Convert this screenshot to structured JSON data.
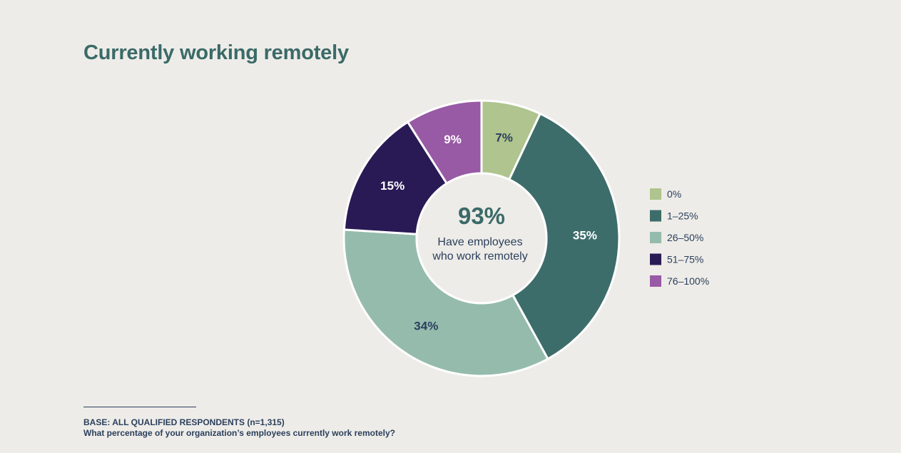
{
  "title": "Currently working remotely",
  "chart_data": {
    "type": "pie",
    "style": "donut",
    "categories": [
      "0%",
      "1–25%",
      "26–50%",
      "51–75%",
      "76–100%"
    ],
    "values": [
      7,
      35,
      34,
      15,
      9
    ],
    "slice_labels": [
      "7%",
      "35%",
      "34%",
      "15%",
      "9%"
    ],
    "colors": [
      "#afc48e",
      "#3d6d6b",
      "#95bbad",
      "#291a55",
      "#9859a5"
    ],
    "label_colors": [
      "#2a3f5c",
      "#ffffff",
      "#2a3f5c",
      "#ffffff",
      "#ffffff"
    ],
    "center": {
      "value": "93%",
      "line1": "Have employees",
      "line2": "who work remotely"
    },
    "legend_placement": "right"
  },
  "footnote": {
    "base": "BASE: ALL QUALIFIED RESPONDENTS (n=1,315)",
    "question": "What percentage of your organization’s employees currently work remotely?"
  }
}
